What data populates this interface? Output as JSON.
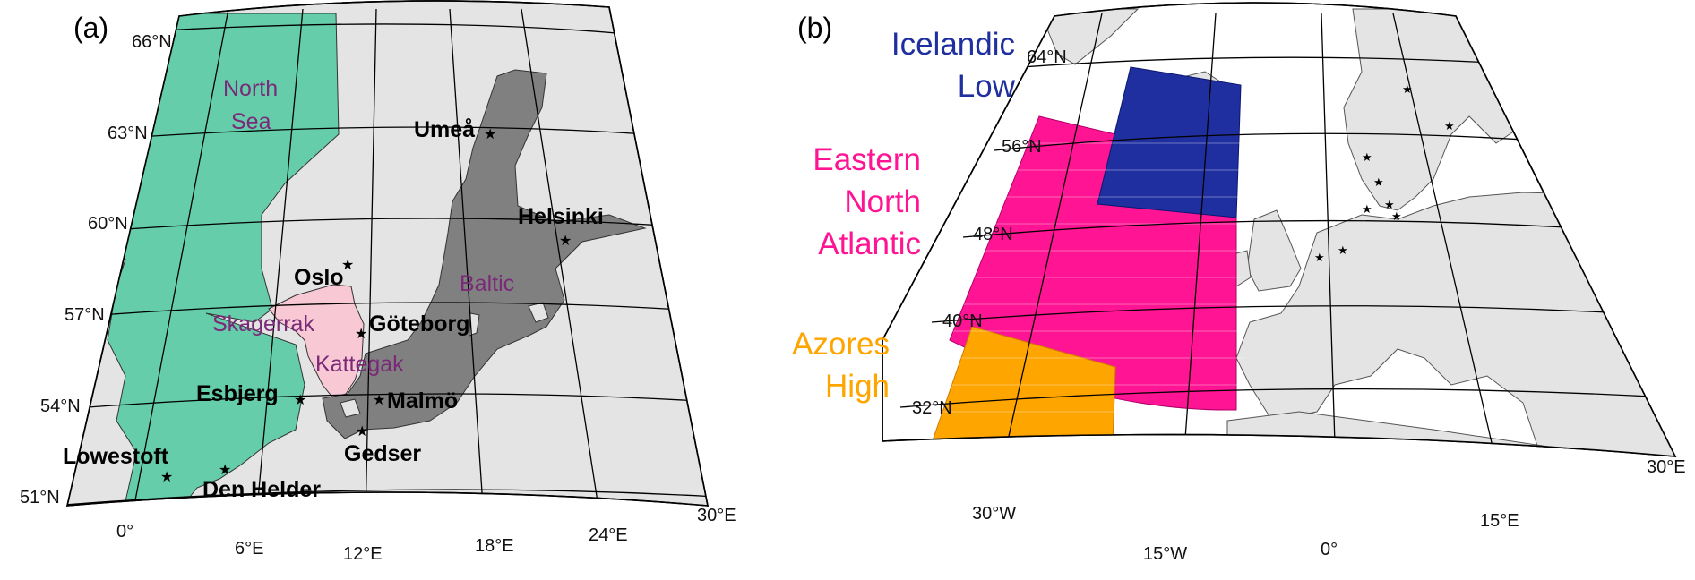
{
  "panel_a": {
    "label": "(a)",
    "lat_labels": [
      "66°N",
      "63°N",
      "60°N",
      "57°N",
      "54°N",
      "51°N"
    ],
    "lon_labels": [
      "0°",
      "6°E",
      "12°E",
      "18°E",
      "24°E",
      "30°E"
    ],
    "regions": {
      "north_sea": [
        "North",
        "Sea"
      ],
      "skagerrak": "Skagerrak",
      "kattegat": "Kattegak",
      "baltic": "Baltic"
    },
    "stations": [
      "Umeå",
      "Helsinki",
      "Oslo",
      "Göteborg",
      "Esbjerg",
      "Malmö",
      "Gedser",
      "Lowestoft",
      "Den Helder"
    ],
    "colors": {
      "north_sea": "#66cdaa",
      "skagerrak_kattegat": "#f8c8d4",
      "baltic": "#808080",
      "land": "#e4e4e4"
    }
  },
  "panel_b": {
    "label": "(b)",
    "lat_labels": [
      "64°N",
      "56°N",
      "48°N",
      "40°N",
      "32°N"
    ],
    "lon_labels": [
      "30°W",
      "15°W",
      "0°",
      "15°E",
      "30°E"
    ],
    "domains": {
      "icelandic_low": [
        "Icelandic",
        "Low"
      ],
      "eastern_north_atlantic": [
        "Eastern",
        "North",
        "Atlantic"
      ],
      "azores_high": [
        "Azores",
        "High"
      ]
    },
    "colors": {
      "icelandic_low": "#1f2fa0",
      "eastern_north_atlantic": "#ff1493",
      "azores_high": "#ffa500",
      "land": "#e4e4e4"
    }
  }
}
